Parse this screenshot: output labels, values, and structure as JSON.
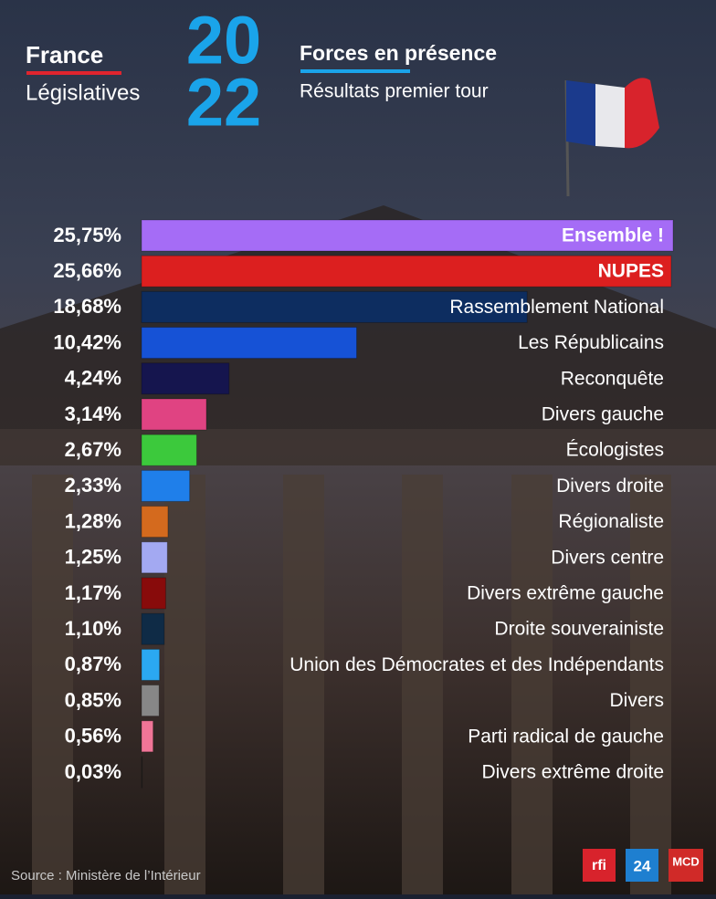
{
  "header": {
    "brand": "France",
    "subtitle": "Législatives",
    "year": [
      "20",
      "22"
    ]
  },
  "chart_data": {
    "type": "bar",
    "orientation": "horizontal",
    "title": "Forces en présence",
    "subtitle": "Résultats premier tour",
    "categories": [
      "Ensemble !",
      "NUPES",
      "Rassemblement National",
      "Les Républicains",
      "Reconquête",
      "Divers gauche",
      "Écologistes",
      "Divers droite",
      "Régionaliste",
      "Divers centre",
      "Divers extrême gauche",
      "Droite souverainiste",
      "Union des Démocrates et des Indépendants",
      "Divers",
      "Parti radical de gauche",
      "Divers extrême droite"
    ],
    "values": [
      25.75,
      25.66,
      18.68,
      10.42,
      4.24,
      3.14,
      2.67,
      2.33,
      1.28,
      1.25,
      1.17,
      1.1,
      0.87,
      0.85,
      0.56,
      0.03
    ],
    "value_labels": [
      "25,75%",
      "25,66%",
      "18,68%",
      "10,42%",
      "4,24%",
      "3,14%",
      "2,67%",
      "2,33%",
      "1,28%",
      "1,25%",
      "1,17%",
      "1,10%",
      "0,87%",
      "0,85%",
      "0,56%",
      "0,03%"
    ],
    "colors": [
      "#a56cf6",
      "#dc1f1f",
      "#0d2d60",
      "#1652d6",
      "#15154e",
      "#e04382",
      "#3cc93c",
      "#1f7fea",
      "#d46a1e",
      "#a3a9f2",
      "#880b0b",
      "#0f2b46",
      "#2ba8f1",
      "#878787",
      "#f07597",
      "#222222"
    ]
  },
  "source": "Source : Ministère de l’Intérieur",
  "logos": [
    "rfi",
    "24",
    "MCD"
  ]
}
